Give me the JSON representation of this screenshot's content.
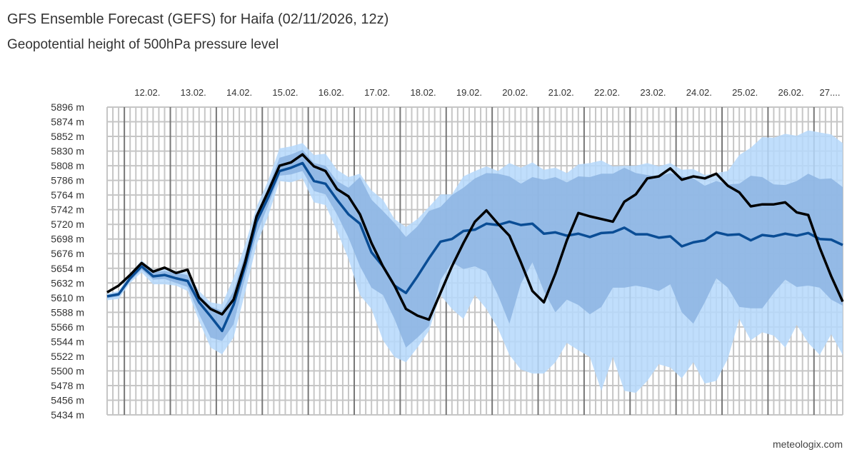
{
  "header": {
    "title": "GFS Ensemble Forecast (GEFS) for Haifa (02/11/2026, 12z)",
    "subtitle": "Geopotential height of 500hPa pressure level"
  },
  "footer": {
    "credit": "meteologix.com"
  },
  "chart_data": {
    "type": "area",
    "title": "GFS Ensemble Forecast (GEFS) for Haifa (02/11/2026, 12z)",
    "subtitle": "Geopotential height of 500hPa pressure level",
    "xlabel": "",
    "ylabel": "",
    "xlim": [
      "2026-02-11T15:00",
      "2026-02-27T15:00"
    ],
    "ylim": [
      5434,
      5896
    ],
    "y_ticks": [
      "5896 m",
      "5874 m",
      "5852 m",
      "5830 m",
      "5808 m",
      "5786 m",
      "5764 m",
      "5742 m",
      "5720 m",
      "5698 m",
      "5676 m",
      "5654 m",
      "5632 m",
      "5610 m",
      "5588 m",
      "5566 m",
      "5544 m",
      "5522 m",
      "5500 m",
      "5478 m",
      "5456 m",
      "5434 m"
    ],
    "x_ticks": [
      "12.02.",
      "13.02.",
      "14.02.",
      "15.02.",
      "16.02.",
      "17.02.",
      "18.02.",
      "19.02.",
      "20.02.",
      "21.02.",
      "22.02.",
      "23.02.",
      "24.02.",
      "25.02.",
      "26.02.",
      "27...."
    ],
    "grid": true,
    "legend": "none",
    "colors": {
      "outer_band": "#b5d8fc",
      "inner_band": "#8cb4e2",
      "mean": "#0a4d95",
      "control": "#000000",
      "grid": "#c6c6c6",
      "day_line": "#777777"
    },
    "x": [
      "2026-02-11T15:00",
      "2026-02-11T21:00",
      "2026-02-12T03:00",
      "2026-02-12T09:00",
      "2026-02-12T15:00",
      "2026-02-12T21:00",
      "2026-02-13T03:00",
      "2026-02-13T09:00",
      "2026-02-13T15:00",
      "2026-02-13T21:00",
      "2026-02-14T03:00",
      "2026-02-14T09:00",
      "2026-02-14T15:00",
      "2026-02-14T21:00",
      "2026-02-15T03:00",
      "2026-02-15T09:00",
      "2026-02-15T15:00",
      "2026-02-15T21:00",
      "2026-02-16T03:00",
      "2026-02-16T09:00",
      "2026-02-16T15:00",
      "2026-02-16T21:00",
      "2026-02-17T03:00",
      "2026-02-17T09:00",
      "2026-02-17T15:00",
      "2026-02-17T21:00",
      "2026-02-18T03:00",
      "2026-02-18T09:00",
      "2026-02-18T15:00",
      "2026-02-18T21:00",
      "2026-02-19T03:00",
      "2026-02-19T09:00",
      "2026-02-19T15:00",
      "2026-02-19T21:00",
      "2026-02-20T03:00",
      "2026-02-20T09:00",
      "2026-02-20T15:00",
      "2026-02-20T21:00",
      "2026-02-21T03:00",
      "2026-02-21T09:00",
      "2026-02-21T15:00",
      "2026-02-21T21:00",
      "2026-02-22T03:00",
      "2026-02-22T09:00",
      "2026-02-22T15:00",
      "2026-02-22T21:00",
      "2026-02-23T03:00",
      "2026-02-23T09:00",
      "2026-02-23T15:00",
      "2026-02-23T21:00",
      "2026-02-24T03:00",
      "2026-02-24T09:00",
      "2026-02-24T15:00",
      "2026-02-24T21:00",
      "2026-02-25T03:00",
      "2026-02-25T09:00",
      "2026-02-25T15:00",
      "2026-02-25T21:00",
      "2026-02-26T03:00",
      "2026-02-26T09:00",
      "2026-02-26T15:00",
      "2026-02-26T21:00",
      "2026-02-27T03:00",
      "2026-02-27T09:00",
      "2026-02-27T15:00"
    ],
    "bands": {
      "outer_max": [
        5616,
        5620,
        5646,
        5666,
        5652,
        5653,
        5650,
        5648,
        5620,
        5603,
        5600,
        5640,
        5689,
        5746,
        5785,
        5834,
        5837,
        5842,
        5824,
        5826,
        5802,
        5791,
        5796,
        5771,
        5757,
        5728,
        5716,
        5728,
        5746,
        5765,
        5765,
        5792,
        5800,
        5807,
        5800,
        5812,
        5805,
        5813,
        5802,
        5805,
        5797,
        5810,
        5812,
        5816,
        5807,
        5808,
        5808,
        5812,
        5807,
        5812,
        5802,
        5803,
        5794,
        5797,
        5800,
        5824,
        5835,
        5851,
        5850,
        5856,
        5853,
        5861,
        5858,
        5855,
        5842
      ],
      "inner_max": [
        5614,
        5618,
        5643,
        5662,
        5648,
        5650,
        5647,
        5644,
        5614,
        5597,
        5590,
        5620,
        5675,
        5735,
        5775,
        5820,
        5825,
        5832,
        5812,
        5808,
        5785,
        5775,
        5791,
        5757,
        5740,
        5722,
        5701,
        5717,
        5740,
        5746,
        5764,
        5775,
        5789,
        5797,
        5796,
        5792,
        5781,
        5791,
        5787,
        5791,
        5783,
        5792,
        5791,
        5796,
        5796,
        5805,
        5797,
        5794,
        5792,
        5797,
        5792,
        5789,
        5778,
        5785,
        5780,
        5781,
        5793,
        5791,
        5780,
        5779,
        5785,
        5796,
        5788,
        5789,
        5776
      ],
      "inner_min": [
        5609,
        5612,
        5635,
        5652,
        5637,
        5638,
        5632,
        5626,
        5585,
        5550,
        5545,
        5570,
        5640,
        5705,
        5748,
        5793,
        5795,
        5800,
        5770,
        5765,
        5735,
        5700,
        5657,
        5625,
        5614,
        5578,
        5535,
        5550,
        5567,
        5636,
        5663,
        5653,
        5657,
        5649,
        5614,
        5571,
        5631,
        5663,
        5620,
        5588,
        5607,
        5599,
        5585,
        5596,
        5625,
        5625,
        5628,
        5625,
        5620,
        5630,
        5588,
        5571,
        5603,
        5639,
        5625,
        5596,
        5594,
        5594,
        5617,
        5637,
        5626,
        5628,
        5625,
        5607,
        5598
      ],
      "outer_min": [
        5606,
        5608,
        5632,
        5648,
        5630,
        5630,
        5628,
        5620,
        5575,
        5535,
        5525,
        5550,
        5617,
        5689,
        5732,
        5785,
        5783,
        5789,
        5753,
        5749,
        5710,
        5668,
        5614,
        5593,
        5546,
        5521,
        5513,
        5535,
        5560,
        5614,
        5593,
        5578,
        5614,
        5593,
        5564,
        5524,
        5502,
        5496,
        5496,
        5513,
        5542,
        5531,
        5521,
        5470,
        5521,
        5470,
        5467,
        5485,
        5510,
        5505,
        5489,
        5513,
        5481,
        5485,
        5518,
        5578,
        5546,
        5558,
        5553,
        5535,
        5569,
        5542,
        5524,
        5555,
        5524
      ]
    },
    "series": [
      {
        "key": "mean",
        "values": [
          5612,
          5615,
          5639,
          5657,
          5642,
          5644,
          5639,
          5635,
          5603,
          5582,
          5560,
          5599,
          5657,
          5724,
          5760,
          5800,
          5805,
          5812,
          5785,
          5781,
          5757,
          5735,
          5721,
          5678,
          5657,
          5628,
          5617,
          5642,
          5669,
          5694,
          5698,
          5710,
          5712,
          5721,
          5719,
          5724,
          5719,
          5721,
          5706,
          5708,
          5703,
          5706,
          5701,
          5707,
          5708,
          5715,
          5705,
          5705,
          5700,
          5702,
          5687,
          5693,
          5696,
          5708,
          5704,
          5705,
          5696,
          5704,
          5702,
          5706,
          5703,
          5707,
          5698,
          5697,
          5689
        ]
      },
      {
        "key": "control",
        "values": [
          5618,
          5628,
          5644,
          5662,
          5649,
          5655,
          5647,
          5652,
          5610,
          5593,
          5585,
          5607,
          5663,
          5732,
          5769,
          5808,
          5813,
          5825,
          5807,
          5800,
          5773,
          5762,
          5735,
          5692,
          5657,
          5628,
          5593,
          5583,
          5577,
          5617,
          5657,
          5692,
          5724,
          5741,
          5721,
          5703,
          5663,
          5620,
          5603,
          5646,
          5696,
          5737,
          5732,
          5728,
          5724,
          5754,
          5765,
          5789,
          5792,
          5804,
          5787,
          5792,
          5789,
          5796,
          5778,
          5768,
          5747,
          5750,
          5750,
          5753,
          5738,
          5734,
          5685,
          5642,
          5604
        ]
      }
    ]
  }
}
